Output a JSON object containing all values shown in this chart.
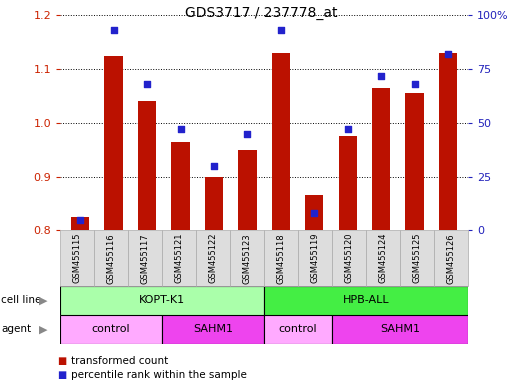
{
  "title": "GDS3717 / 237778_at",
  "samples": [
    "GSM455115",
    "GSM455116",
    "GSM455117",
    "GSM455121",
    "GSM455122",
    "GSM455123",
    "GSM455118",
    "GSM455119",
    "GSM455120",
    "GSM455124",
    "GSM455125",
    "GSM455126"
  ],
  "transformed_count": [
    0.825,
    1.125,
    1.04,
    0.965,
    0.9,
    0.95,
    1.13,
    0.865,
    0.975,
    1.065,
    1.055,
    1.13
  ],
  "percentile_rank": [
    5,
    93,
    68,
    47,
    30,
    45,
    93,
    8,
    47,
    72,
    68,
    82
  ],
  "ylim_left": [
    0.8,
    1.2
  ],
  "ylim_right": [
    0,
    100
  ],
  "yticks_left": [
    0.8,
    0.9,
    1.0,
    1.1,
    1.2
  ],
  "yticks_right": [
    0,
    25,
    50,
    75,
    100
  ],
  "cell_line_groups": [
    {
      "label": "KOPT-K1",
      "start": 0,
      "end": 6,
      "color": "#AAFFAA"
    },
    {
      "label": "HPB-ALL",
      "start": 6,
      "end": 12,
      "color": "#44EE44"
    }
  ],
  "agent_groups": [
    {
      "label": "control",
      "start": 0,
      "end": 3,
      "color": "#FFAAFF"
    },
    {
      "label": "SAHM1",
      "start": 3,
      "end": 6,
      "color": "#EE44EE"
    },
    {
      "label": "control",
      "start": 6,
      "end": 8,
      "color": "#FFAAFF"
    },
    {
      "label": "SAHM1",
      "start": 8,
      "end": 12,
      "color": "#EE44EE"
    }
  ],
  "bar_color": "#BB1100",
  "dot_color": "#2222CC",
  "bar_width": 0.55,
  "tick_color_left": "#CC2200",
  "tick_color_right": "#2222BB",
  "xlabel_bg": "#DDDDDD",
  "xlabel_edge": "#AAAAAA",
  "legend_items": [
    {
      "label": "transformed count",
      "color": "#BB1100"
    },
    {
      "label": "percentile rank within the sample",
      "color": "#2222CC"
    }
  ]
}
